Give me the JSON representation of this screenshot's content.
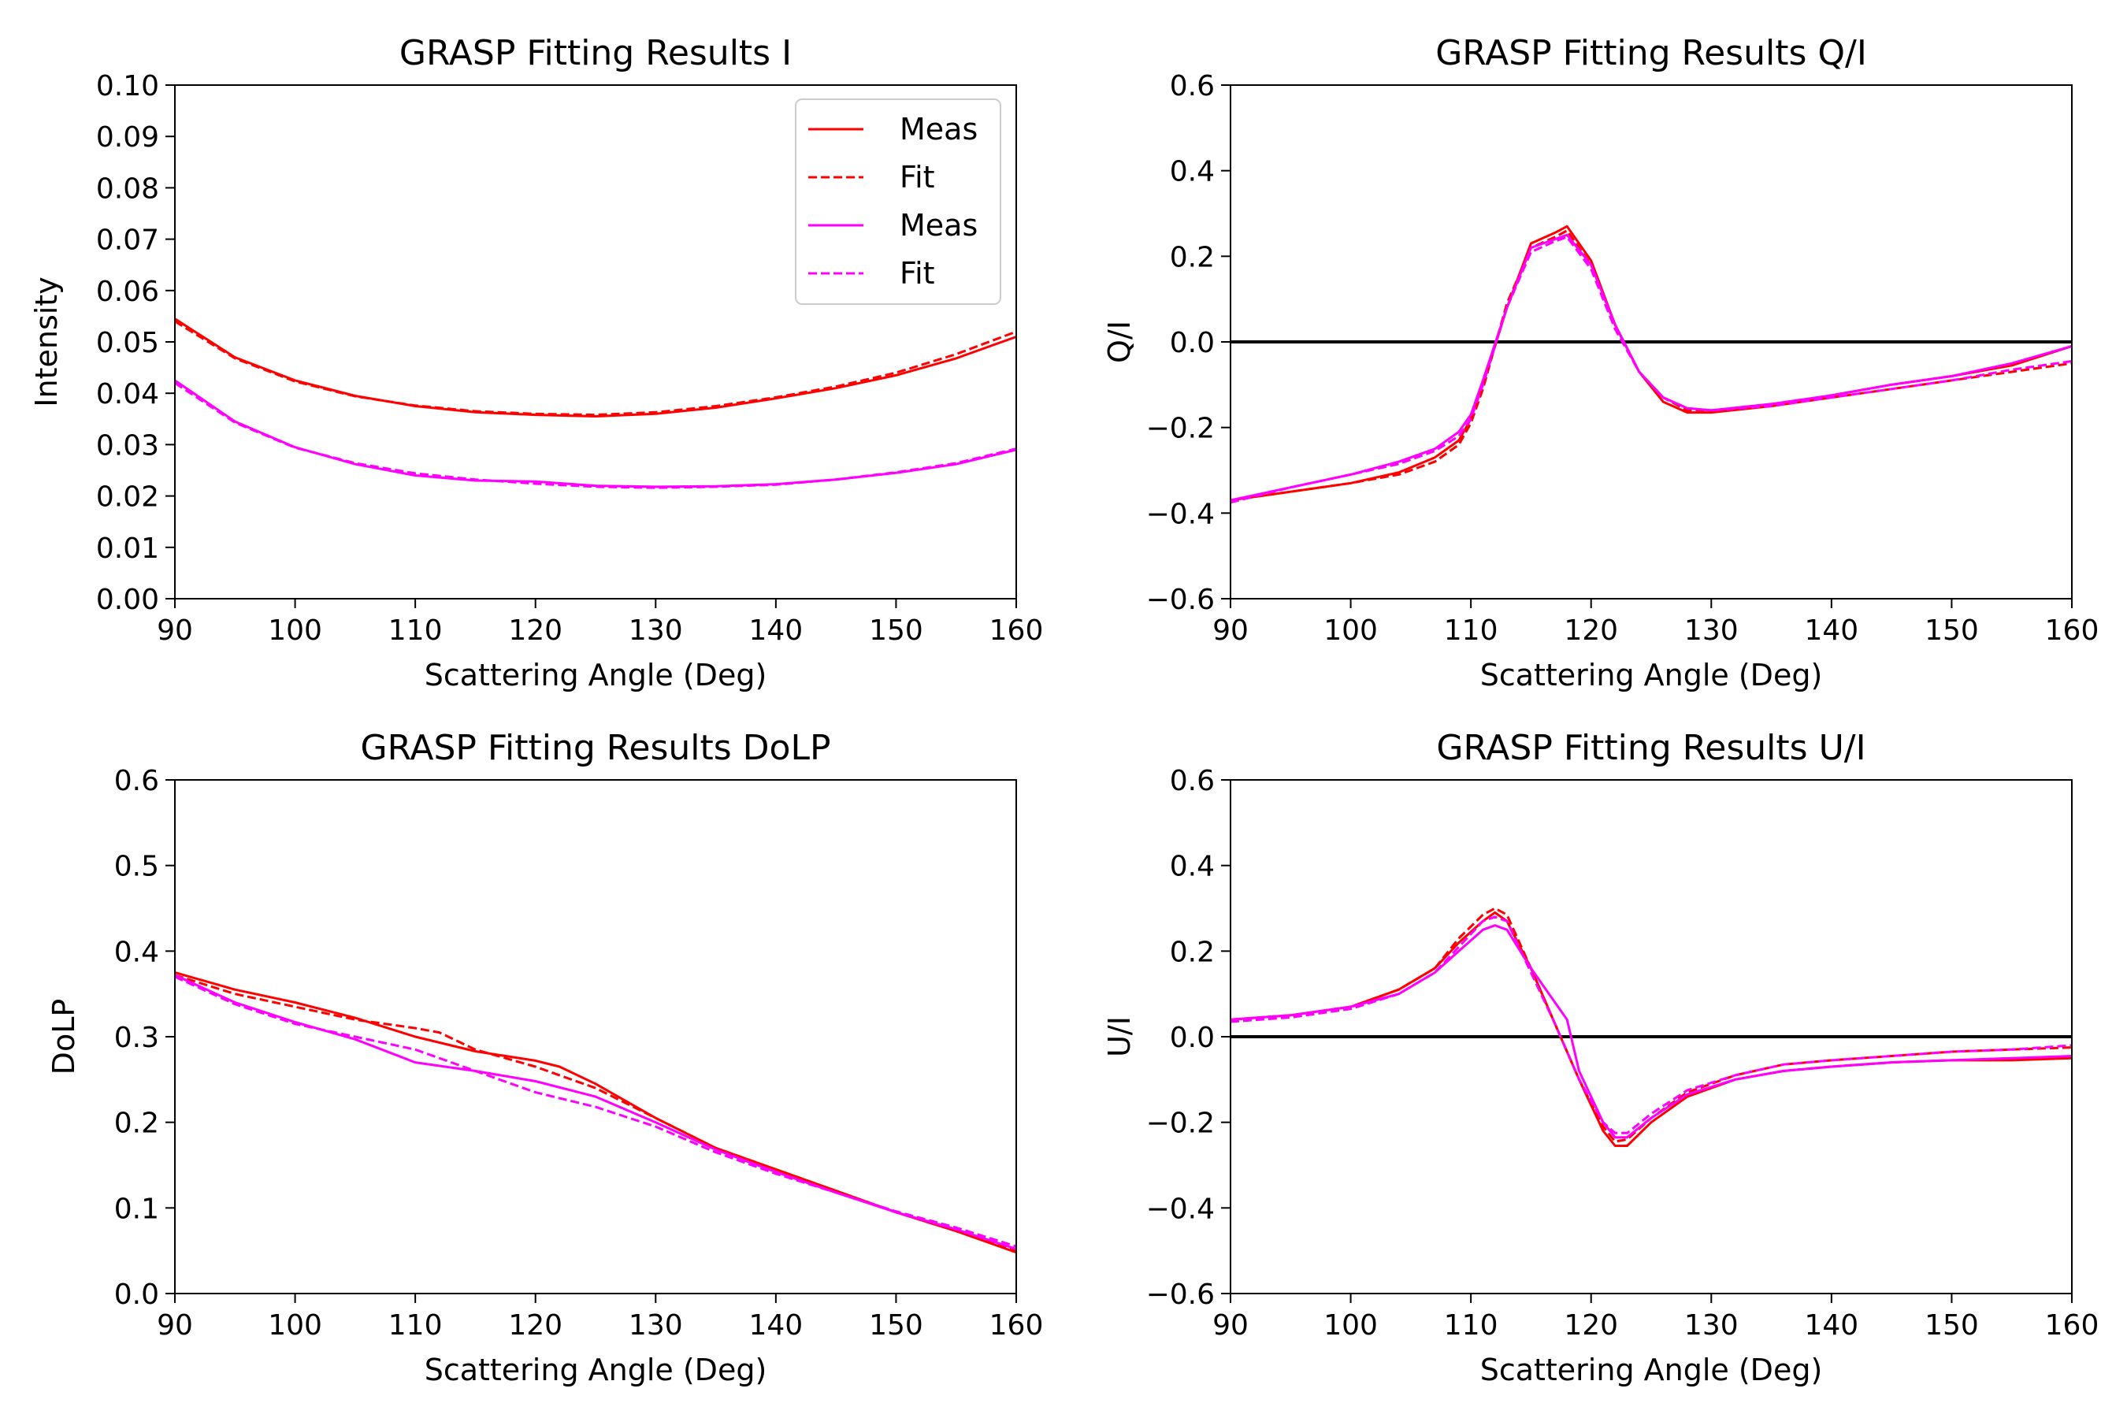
{
  "figure": {
    "background": "#ffffff"
  },
  "chart_data": [
    {
      "type": "line",
      "title": "GRASP Fitting Results I",
      "xlabel": "Scattering Angle (Deg)",
      "ylabel": "Intensity",
      "xlim": [
        90,
        160
      ],
      "ylim": [
        0.0,
        0.1
      ],
      "xticks": [
        90,
        100,
        110,
        120,
        130,
        140,
        150,
        160
      ],
      "xtick_labels": [
        "90",
        "100",
        "110",
        "120",
        "130",
        "140",
        "150",
        "160"
      ],
      "yticks": [
        0.0,
        0.01,
        0.02,
        0.03,
        0.04,
        0.05,
        0.06,
        0.07,
        0.08,
        0.09,
        0.1
      ],
      "ytick_labels": [
        "0.00",
        "0.01",
        "0.02",
        "0.03",
        "0.04",
        "0.05",
        "0.06",
        "0.07",
        "0.08",
        "0.09",
        "0.10"
      ],
      "grid": false,
      "legend": "top-right",
      "zero_line": false,
      "series": [
        {
          "name": "Meas",
          "color": "#ff0000",
          "style": "solid",
          "x": [
            90,
            95,
            100,
            105,
            110,
            115,
            120,
            125,
            130,
            135,
            140,
            145,
            150,
            155,
            160
          ],
          "y": [
            0.0545,
            0.047,
            0.0425,
            0.0395,
            0.0375,
            0.0363,
            0.0358,
            0.0355,
            0.036,
            0.0372,
            0.039,
            0.041,
            0.0435,
            0.0468,
            0.051
          ]
        },
        {
          "name": "Fit",
          "color": "#ff0000",
          "style": "dashed",
          "x": [
            90,
            95,
            100,
            105,
            110,
            115,
            120,
            125,
            130,
            135,
            140,
            145,
            150,
            155,
            160
          ],
          "y": [
            0.054,
            0.0468,
            0.0423,
            0.0394,
            0.0376,
            0.0365,
            0.036,
            0.0358,
            0.0363,
            0.0375,
            0.0392,
            0.0413,
            0.044,
            0.0476,
            0.052
          ]
        },
        {
          "name": "Meas",
          "color": "#ff00ff",
          "style": "solid",
          "x": [
            90,
            95,
            100,
            105,
            110,
            115,
            120,
            125,
            130,
            135,
            140,
            145,
            150,
            155,
            160
          ],
          "y": [
            0.0425,
            0.0345,
            0.0295,
            0.0262,
            0.024,
            0.023,
            0.0228,
            0.022,
            0.0218,
            0.0219,
            0.0223,
            0.0232,
            0.0245,
            0.0262,
            0.029
          ]
        },
        {
          "name": "Fit",
          "color": "#ff00ff",
          "style": "dashed",
          "x": [
            90,
            95,
            100,
            105,
            110,
            115,
            120,
            125,
            130,
            135,
            140,
            145,
            150,
            155,
            160
          ],
          "y": [
            0.042,
            0.0343,
            0.0294,
            0.0264,
            0.0244,
            0.0232,
            0.0224,
            0.0218,
            0.0216,
            0.0218,
            0.0222,
            0.0232,
            0.0246,
            0.0264,
            0.0292
          ]
        }
      ]
    },
    {
      "type": "line",
      "title": "GRASP Fitting Results Q/I",
      "xlabel": "Scattering Angle (Deg)",
      "ylabel": "Q/I",
      "xlim": [
        90,
        160
      ],
      "ylim": [
        -0.6,
        0.6
      ],
      "xticks": [
        90,
        100,
        110,
        120,
        130,
        140,
        150,
        160
      ],
      "xtick_labels": [
        "90",
        "100",
        "110",
        "120",
        "130",
        "140",
        "150",
        "160"
      ],
      "yticks": [
        -0.6,
        -0.4,
        -0.2,
        0.0,
        0.2,
        0.4,
        0.6
      ],
      "ytick_labels": [
        "−0.6",
        "−0.4",
        "−0.2",
        "0.0",
        "0.2",
        "0.4",
        "0.6"
      ],
      "grid": false,
      "legend": "none",
      "zero_line": true,
      "series": [
        {
          "color": "#ff0000",
          "style": "solid",
          "x": [
            90,
            95,
            100,
            104,
            107,
            109,
            110,
            111,
            113,
            115,
            117,
            118,
            120,
            122,
            124,
            126,
            128,
            130,
            135,
            140,
            145,
            150,
            155,
            160
          ],
          "y": [
            -0.37,
            -0.35,
            -0.33,
            -0.305,
            -0.27,
            -0.23,
            -0.18,
            -0.1,
            0.08,
            0.23,
            0.255,
            0.27,
            0.19,
            0.04,
            -0.07,
            -0.14,
            -0.165,
            -0.165,
            -0.15,
            -0.125,
            -0.1,
            -0.08,
            -0.055,
            -0.01
          ]
        },
        {
          "color": "#ff0000",
          "style": "dashed",
          "x": [
            90,
            95,
            100,
            104,
            107,
            109,
            110,
            111,
            113,
            115,
            117,
            118,
            120,
            122,
            124,
            126,
            128,
            130,
            135,
            140,
            145,
            150,
            155,
            160
          ],
          "y": [
            -0.37,
            -0.35,
            -0.33,
            -0.31,
            -0.28,
            -0.24,
            -0.19,
            -0.11,
            0.09,
            0.22,
            0.245,
            0.26,
            0.18,
            0.04,
            -0.07,
            -0.13,
            -0.16,
            -0.16,
            -0.15,
            -0.13,
            -0.11,
            -0.09,
            -0.07,
            -0.05
          ]
        },
        {
          "color": "#ff00ff",
          "style": "solid",
          "x": [
            90,
            95,
            100,
            104,
            107,
            109,
            110,
            111,
            113,
            115,
            117,
            118,
            120,
            122,
            124,
            126,
            128,
            130,
            135,
            140,
            145,
            150,
            155,
            160
          ],
          "y": [
            -0.37,
            -0.34,
            -0.31,
            -0.28,
            -0.25,
            -0.21,
            -0.17,
            -0.09,
            0.08,
            0.22,
            0.24,
            0.25,
            0.18,
            0.04,
            -0.07,
            -0.13,
            -0.155,
            -0.16,
            -0.145,
            -0.125,
            -0.1,
            -0.08,
            -0.05,
            -0.01
          ]
        },
        {
          "color": "#ff00ff",
          "style": "dashed",
          "x": [
            90,
            95,
            100,
            104,
            107,
            109,
            110,
            111,
            113,
            115,
            117,
            118,
            120,
            122,
            124,
            126,
            128,
            130,
            135,
            140,
            145,
            150,
            155,
            160
          ],
          "y": [
            -0.375,
            -0.34,
            -0.31,
            -0.285,
            -0.255,
            -0.22,
            -0.18,
            -0.1,
            0.08,
            0.21,
            0.235,
            0.245,
            0.17,
            0.03,
            -0.07,
            -0.13,
            -0.155,
            -0.16,
            -0.15,
            -0.13,
            -0.11,
            -0.09,
            -0.065,
            -0.045
          ]
        }
      ]
    },
    {
      "type": "line",
      "title": "GRASP Fitting Results DoLP",
      "xlabel": "Scattering Angle (Deg)",
      "ylabel": "DoLP",
      "xlim": [
        90,
        160
      ],
      "ylim": [
        0.0,
        0.6
      ],
      "xticks": [
        90,
        100,
        110,
        120,
        130,
        140,
        150,
        160
      ],
      "xtick_labels": [
        "90",
        "100",
        "110",
        "120",
        "130",
        "140",
        "150",
        "160"
      ],
      "yticks": [
        0.0,
        0.1,
        0.2,
        0.3,
        0.4,
        0.5,
        0.6
      ],
      "ytick_labels": [
        "0.0",
        "0.1",
        "0.2",
        "0.3",
        "0.4",
        "0.5",
        "0.6"
      ],
      "grid": false,
      "legend": "none",
      "zero_line": false,
      "series": [
        {
          "color": "#ff0000",
          "style": "solid",
          "x": [
            90,
            95,
            100,
            105,
            110,
            115,
            120,
            122,
            125,
            130,
            135,
            140,
            145,
            150,
            155,
            160
          ],
          "y": [
            0.375,
            0.355,
            0.34,
            0.322,
            0.3,
            0.283,
            0.272,
            0.265,
            0.245,
            0.205,
            0.17,
            0.145,
            0.12,
            0.095,
            0.073,
            0.048
          ]
        },
        {
          "color": "#ff0000",
          "style": "dashed",
          "x": [
            90,
            95,
            100,
            105,
            110,
            112,
            115,
            120,
            122,
            125,
            130,
            135,
            140,
            145,
            150,
            155,
            160
          ],
          "y": [
            0.372,
            0.35,
            0.335,
            0.32,
            0.31,
            0.305,
            0.285,
            0.265,
            0.255,
            0.24,
            0.205,
            0.17,
            0.145,
            0.12,
            0.095,
            0.073,
            0.05
          ]
        },
        {
          "color": "#ff00ff",
          "style": "solid",
          "x": [
            90,
            95,
            100,
            105,
            110,
            115,
            120,
            125,
            130,
            135,
            140,
            145,
            150,
            155,
            160
          ],
          "y": [
            0.372,
            0.34,
            0.317,
            0.297,
            0.27,
            0.26,
            0.248,
            0.23,
            0.2,
            0.168,
            0.142,
            0.118,
            0.095,
            0.075,
            0.052
          ]
        },
        {
          "color": "#ff00ff",
          "style": "dashed",
          "x": [
            90,
            95,
            100,
            105,
            110,
            115,
            120,
            125,
            130,
            135,
            140,
            145,
            150,
            155,
            160
          ],
          "y": [
            0.37,
            0.338,
            0.315,
            0.3,
            0.285,
            0.26,
            0.235,
            0.218,
            0.195,
            0.165,
            0.14,
            0.118,
            0.096,
            0.077,
            0.055
          ]
        }
      ]
    },
    {
      "type": "line",
      "title": "GRASP Fitting Results U/I",
      "xlabel": "Scattering Angle (Deg)",
      "ylabel": "U/I",
      "xlim": [
        90,
        160
      ],
      "ylim": [
        -0.6,
        0.6
      ],
      "xticks": [
        90,
        100,
        110,
        120,
        130,
        140,
        150,
        160
      ],
      "xtick_labels": [
        "90",
        "100",
        "110",
        "120",
        "130",
        "140",
        "150",
        "160"
      ],
      "yticks": [
        -0.6,
        -0.4,
        -0.2,
        0.0,
        0.2,
        0.4,
        0.6
      ],
      "ytick_labels": [
        "−0.6",
        "−0.4",
        "−0.2",
        "0.0",
        "0.2",
        "0.4",
        "0.6"
      ],
      "grid": false,
      "legend": "none",
      "zero_line": true,
      "series": [
        {
          "color": "#ff0000",
          "style": "solid",
          "x": [
            90,
            95,
            100,
            104,
            107,
            109,
            111,
            112,
            113,
            115,
            117,
            119,
            121,
            122,
            123,
            125,
            128,
            132,
            136,
            140,
            145,
            150,
            155,
            160
          ],
          "y": [
            0.04,
            0.05,
            0.07,
            0.11,
            0.16,
            0.22,
            0.27,
            0.29,
            0.27,
            0.16,
            0.03,
            -0.1,
            -0.22,
            -0.255,
            -0.255,
            -0.2,
            -0.14,
            -0.1,
            -0.08,
            -0.07,
            -0.06,
            -0.055,
            -0.055,
            -0.05
          ]
        },
        {
          "color": "#ff0000",
          "style": "dashed",
          "x": [
            90,
            95,
            100,
            104,
            107,
            109,
            111,
            112,
            113,
            115,
            117,
            119,
            121,
            122,
            123,
            125,
            128,
            132,
            136,
            140,
            145,
            150,
            155,
            160
          ],
          "y": [
            0.04,
            0.05,
            0.07,
            0.11,
            0.16,
            0.23,
            0.285,
            0.3,
            0.285,
            0.16,
            0.03,
            -0.1,
            -0.21,
            -0.245,
            -0.24,
            -0.19,
            -0.13,
            -0.09,
            -0.065,
            -0.055,
            -0.045,
            -0.035,
            -0.03,
            -0.025
          ]
        },
        {
          "color": "#ff00ff",
          "style": "solid",
          "x": [
            90,
            95,
            100,
            104,
            107,
            109,
            111,
            112,
            113,
            115,
            117,
            118,
            119,
            121,
            122,
            123,
            125,
            128,
            132,
            136,
            140,
            145,
            150,
            155,
            160
          ],
          "y": [
            0.04,
            0.05,
            0.07,
            0.1,
            0.15,
            0.2,
            0.25,
            0.26,
            0.25,
            0.16,
            0.08,
            0.04,
            -0.08,
            -0.2,
            -0.235,
            -0.235,
            -0.19,
            -0.135,
            -0.1,
            -0.08,
            -0.07,
            -0.06,
            -0.055,
            -0.05,
            -0.045
          ]
        },
        {
          "color": "#ff00ff",
          "style": "dashed",
          "x": [
            90,
            95,
            100,
            104,
            107,
            109,
            111,
            112,
            113,
            115,
            117,
            119,
            121,
            122,
            123,
            125,
            128,
            132,
            136,
            140,
            145,
            150,
            155,
            160
          ],
          "y": [
            0.035,
            0.045,
            0.065,
            0.1,
            0.15,
            0.21,
            0.27,
            0.28,
            0.27,
            0.15,
            0.03,
            -0.1,
            -0.2,
            -0.225,
            -0.225,
            -0.18,
            -0.125,
            -0.09,
            -0.065,
            -0.055,
            -0.045,
            -0.035,
            -0.03,
            -0.02
          ]
        }
      ]
    }
  ]
}
